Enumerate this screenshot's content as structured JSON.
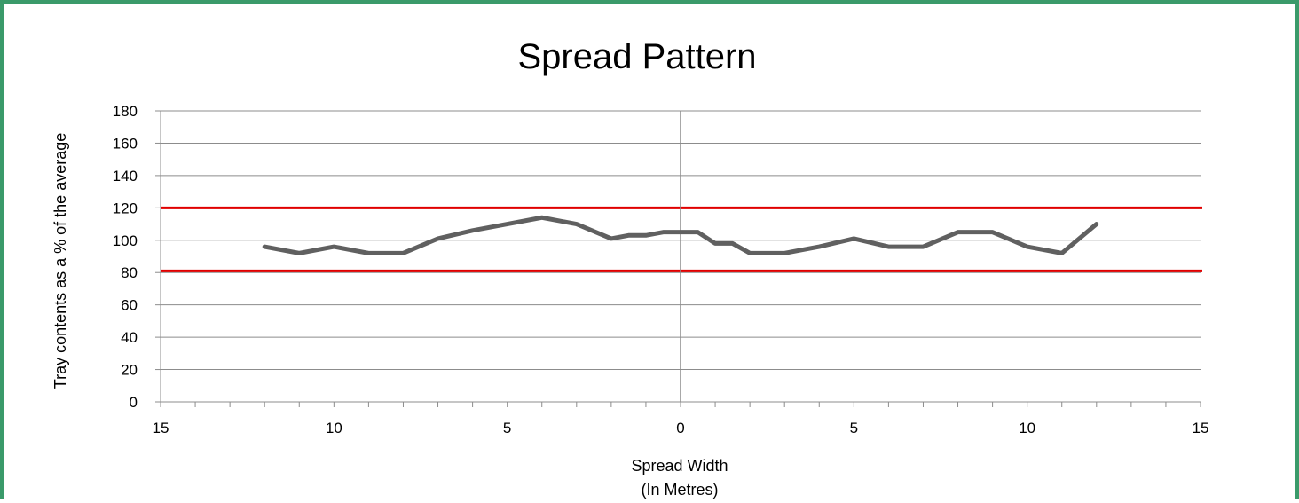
{
  "chart_data": {
    "type": "line",
    "title": "Spread Pattern",
    "xlabel": [
      "Spread Width",
      "(In Metres)"
    ],
    "ylabel": "Tray contents as a % of the average",
    "x_tick_labels": [
      "15",
      "10",
      "5",
      "0",
      "5",
      "10",
      "15"
    ],
    "x_tick_values": [
      -15,
      -10,
      -5,
      0,
      5,
      10,
      15
    ],
    "y_tick_labels": [
      "0",
      "20",
      "40",
      "60",
      "80",
      "100",
      "120",
      "140",
      "160",
      "180"
    ],
    "y_tick_values": [
      0,
      20,
      40,
      60,
      80,
      100,
      120,
      140,
      160,
      180
    ],
    "xlim": [
      -15,
      15
    ],
    "ylim": [
      0,
      180
    ],
    "grid": true,
    "legend": "none",
    "reference_lines": [
      {
        "y": 120,
        "color": "#e00000"
      },
      {
        "y": 81,
        "color": "#e00000"
      }
    ],
    "series": [
      {
        "color": "#606060",
        "x": [
          -12,
          -11,
          -10,
          -9,
          -8,
          -7,
          -6,
          -5,
          -4,
          -3,
          -2,
          -1.5,
          -1,
          -0.5,
          0,
          0.5,
          1,
          1.5,
          2,
          3,
          4,
          5,
          6,
          7,
          8,
          9,
          10,
          11,
          12
        ],
        "y": [
          96,
          92,
          96,
          92,
          92,
          101,
          106,
          110,
          114,
          110,
          101,
          103,
          103,
          105,
          105,
          105,
          98,
          98,
          92,
          92,
          96,
          101,
          96,
          96,
          105,
          105,
          96,
          92,
          110
        ]
      }
    ]
  }
}
